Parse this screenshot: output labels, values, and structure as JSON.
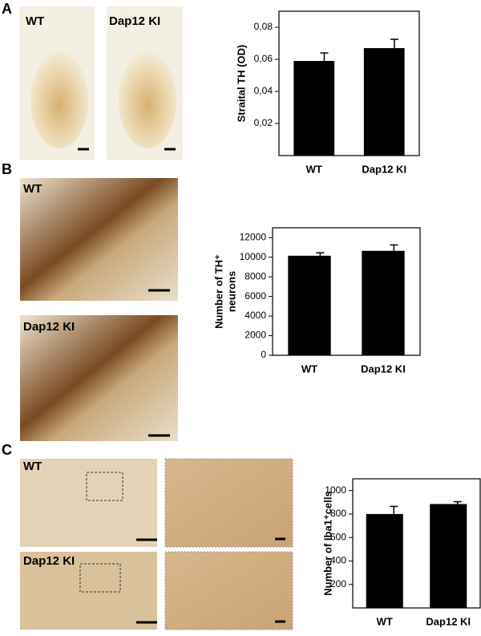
{
  "panel_labels": [
    "A",
    "B",
    "C"
  ],
  "micrograph_labels": [
    [
      "WT",
      "Dap12 KI"
    ],
    [
      "WT",
      "Dap12 KI"
    ],
    [
      "WT",
      "Dap12 KI"
    ]
  ],
  "chart_data": [
    {
      "type": "bar",
      "ylabel": "Straital TH (OD)",
      "categories": [
        "WT",
        "Dap12 KI"
      ],
      "values": [
        0.059,
        0.067
      ],
      "errors": [
        0.005,
        0.0055
      ],
      "color": "#000000",
      "ylim": [
        0,
        0.09
      ],
      "yticks": [
        {
          "value": 0.02,
          "label": "0,02"
        },
        {
          "value": 0.04,
          "label": "0,04"
        },
        {
          "value": 0.06,
          "label": "0,06"
        },
        {
          "value": 0.08,
          "label": "0,08"
        }
      ]
    },
    {
      "type": "bar",
      "ylabel": [
        "Number of TH⁺",
        "neurons"
      ],
      "categories": [
        "WT",
        "Dap12 KI"
      ],
      "values": [
        10150,
        10650
      ],
      "errors": [
        300,
        600
      ],
      "color": "#000000",
      "ylim": [
        0,
        13000
      ],
      "yticks": [
        0,
        2000,
        4000,
        6000,
        8000,
        10000,
        12000
      ]
    },
    {
      "type": "bar",
      "ylabel": "Number of Iba1⁺cells",
      "categories": [
        "WT",
        "Dap12 KI"
      ],
      "values": [
        800,
        885
      ],
      "errors": [
        65,
        20
      ],
      "color": "#000000",
      "ylim": [
        0,
        1100
      ],
      "yticks": [
        200,
        400,
        600,
        800,
        1000
      ]
    }
  ]
}
